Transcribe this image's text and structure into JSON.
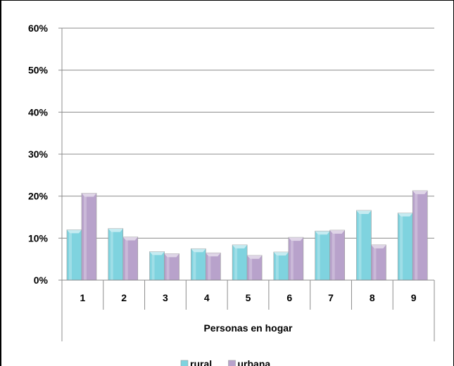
{
  "chart_data": {
    "type": "bar",
    "xlabel": "Personas en hogar",
    "ylabel": "",
    "ylim": [
      0,
      60
    ],
    "yticks": [
      "0%",
      "10%",
      "20%",
      "30%",
      "40%",
      "50%",
      "60%"
    ],
    "categories": [
      "1",
      "2",
      "3",
      "4",
      "5",
      "6",
      "7",
      "8",
      "9"
    ],
    "series": [
      {
        "name": "rural",
        "values": [
          12,
          12.3,
          6.8,
          7.5,
          8.4,
          6.7,
          11.7,
          16.6,
          16
        ]
      },
      {
        "name": "urbana",
        "values": [
          20.7,
          10.3,
          6.3,
          6.5,
          5.9,
          10.2,
          11.9,
          8.4,
          21.3
        ]
      }
    ],
    "grid": true,
    "legend": "bottom",
    "colors": {
      "rural": "#7fd3df",
      "urbana": "#b8a2cb"
    }
  }
}
